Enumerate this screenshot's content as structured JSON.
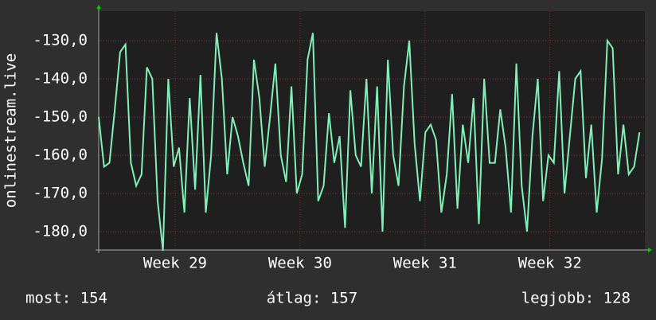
{
  "chart_data": {
    "type": "line",
    "y_label": "onlinestream.live",
    "x": [
      0,
      0.3,
      0.6,
      0.9,
      1.2,
      1.5,
      1.8,
      2.1,
      2.4,
      2.7,
      3,
      3.3,
      3.6,
      3.9,
      4.2,
      4.5,
      4.8,
      5.1,
      5.4,
      5.7,
      6,
      6.3,
      6.6,
      6.9,
      7.2,
      7.5,
      7.8,
      8.1,
      8.4,
      8.7,
      9,
      9.3,
      9.6,
      9.9,
      10.2,
      10.5,
      10.8,
      11.1,
      11.4,
      11.7,
      12,
      12.3,
      12.6,
      12.9,
      13.2,
      13.5,
      13.8,
      14.1,
      14.4,
      14.7,
      15,
      15.3,
      15.6,
      15.9,
      16.2,
      16.5,
      16.8,
      17.1,
      17.4,
      17.7,
      18,
      18.3,
      18.6,
      18.9,
      19.2,
      19.5,
      19.8,
      20.1,
      20.4,
      20.7,
      21,
      21.3,
      21.6,
      21.9,
      22.2,
      22.5,
      22.8,
      23.1,
      23.4,
      23.7,
      24,
      24.3,
      24.6,
      24.9,
      25.2,
      25.5,
      25.8,
      26.1,
      26.4,
      26.7,
      27,
      27.3,
      27.6,
      27.9,
      28.2,
      28.5,
      28.8,
      29.1,
      29.4,
      29.7,
      30,
      30.3
    ],
    "series": [
      {
        "color": "#80f0b8",
        "values": [
          -150,
          -163,
          -162,
          -148,
          -133,
          -131,
          -162,
          -168,
          -165,
          -137,
          -140,
          -172,
          -185,
          -140,
          -163,
          -158,
          -175,
          -145,
          -169,
          -139,
          -175,
          -160,
          -128,
          -140,
          -165,
          -150,
          -155,
          -162,
          -168,
          -135,
          -145,
          -163,
          -150,
          -136,
          -160,
          -167,
          -142,
          -170,
          -165,
          -135,
          -128,
          -172,
          -168,
          -149,
          -162,
          -155,
          -179,
          -143,
          -160,
          -163,
          -140,
          -170,
          -142,
          -180,
          -135,
          -160,
          -168,
          -142,
          -130,
          -157,
          -172,
          -154,
          -152,
          -156,
          -175,
          -165,
          -144,
          -174,
          -152,
          -162,
          -145,
          -178,
          -140,
          -162,
          -162,
          -148,
          -158,
          -175,
          -136,
          -168,
          -180,
          -155,
          -140,
          -172,
          -160,
          -162,
          -138,
          -170,
          -155,
          -140,
          -138,
          -166,
          -152,
          -175,
          -161,
          -130,
          -132,
          -165,
          -152,
          -165,
          -163,
          -154
        ]
      }
    ],
    "xlim": [
      0,
      30.6
    ],
    "xticks": [
      {
        "value": 4.28,
        "label": "Week 29"
      },
      {
        "value": 11.28,
        "label": "Week 30"
      },
      {
        "value": 18.28,
        "label": "Week 31"
      },
      {
        "value": 25.28,
        "label": "Week 32"
      }
    ],
    "ylim": [
      -184.8,
      -122.3
    ],
    "yticks": [
      {
        "value": -180,
        "label": "-180,0"
      },
      {
        "value": -170,
        "label": "-170,0"
      },
      {
        "value": -160,
        "label": "-160,0"
      },
      {
        "value": -150,
        "label": "-150,0"
      },
      {
        "value": -140,
        "label": "-140,0"
      },
      {
        "value": -130,
        "label": "-130,0"
      }
    ],
    "grid": true,
    "stats": [
      "most: 154",
      "átlag: 157",
      "legjobb: 128"
    ]
  }
}
